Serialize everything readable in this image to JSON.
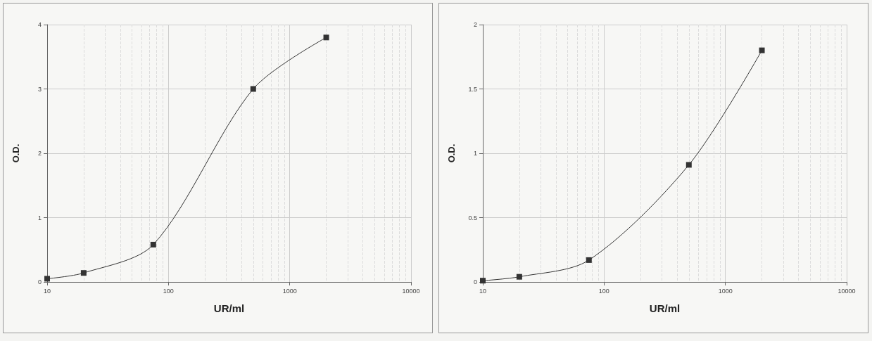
{
  "chart_data": [
    {
      "type": "line",
      "xlabel": "UR/ml",
      "ylabel": "O.D.",
      "x": [
        10,
        20,
        75,
        500,
        2000
      ],
      "series": [
        {
          "color": "#333333",
          "values": [
            0.05,
            0.14,
            0.58,
            3.0,
            3.8
          ]
        }
      ],
      "xlim": [
        10,
        10000
      ],
      "xticks": [
        10,
        100,
        1000,
        10000
      ],
      "ylim": [
        0,
        4
      ],
      "yticks": [
        0,
        1,
        2,
        3,
        4
      ],
      "log": "x",
      "grid": true,
      "marker": "square",
      "line_style": "solid"
    },
    {
      "type": "line",
      "xlabel": "UR/ml",
      "ylabel": "O.D.",
      "x": [
        10,
        20,
        75,
        500,
        2000
      ],
      "series": [
        {
          "color": "#333333",
          "values": [
            0.01,
            0.04,
            0.17,
            0.91,
            1.8
          ]
        }
      ],
      "xlim": [
        10,
        10000
      ],
      "xticks": [
        10,
        100,
        1000,
        10000
      ],
      "ylim": [
        0,
        2
      ],
      "yticks": [
        0,
        0.5,
        1,
        1.5,
        2
      ],
      "log": "x",
      "grid": true,
      "marker": "square",
      "line_style": "solid"
    }
  ]
}
